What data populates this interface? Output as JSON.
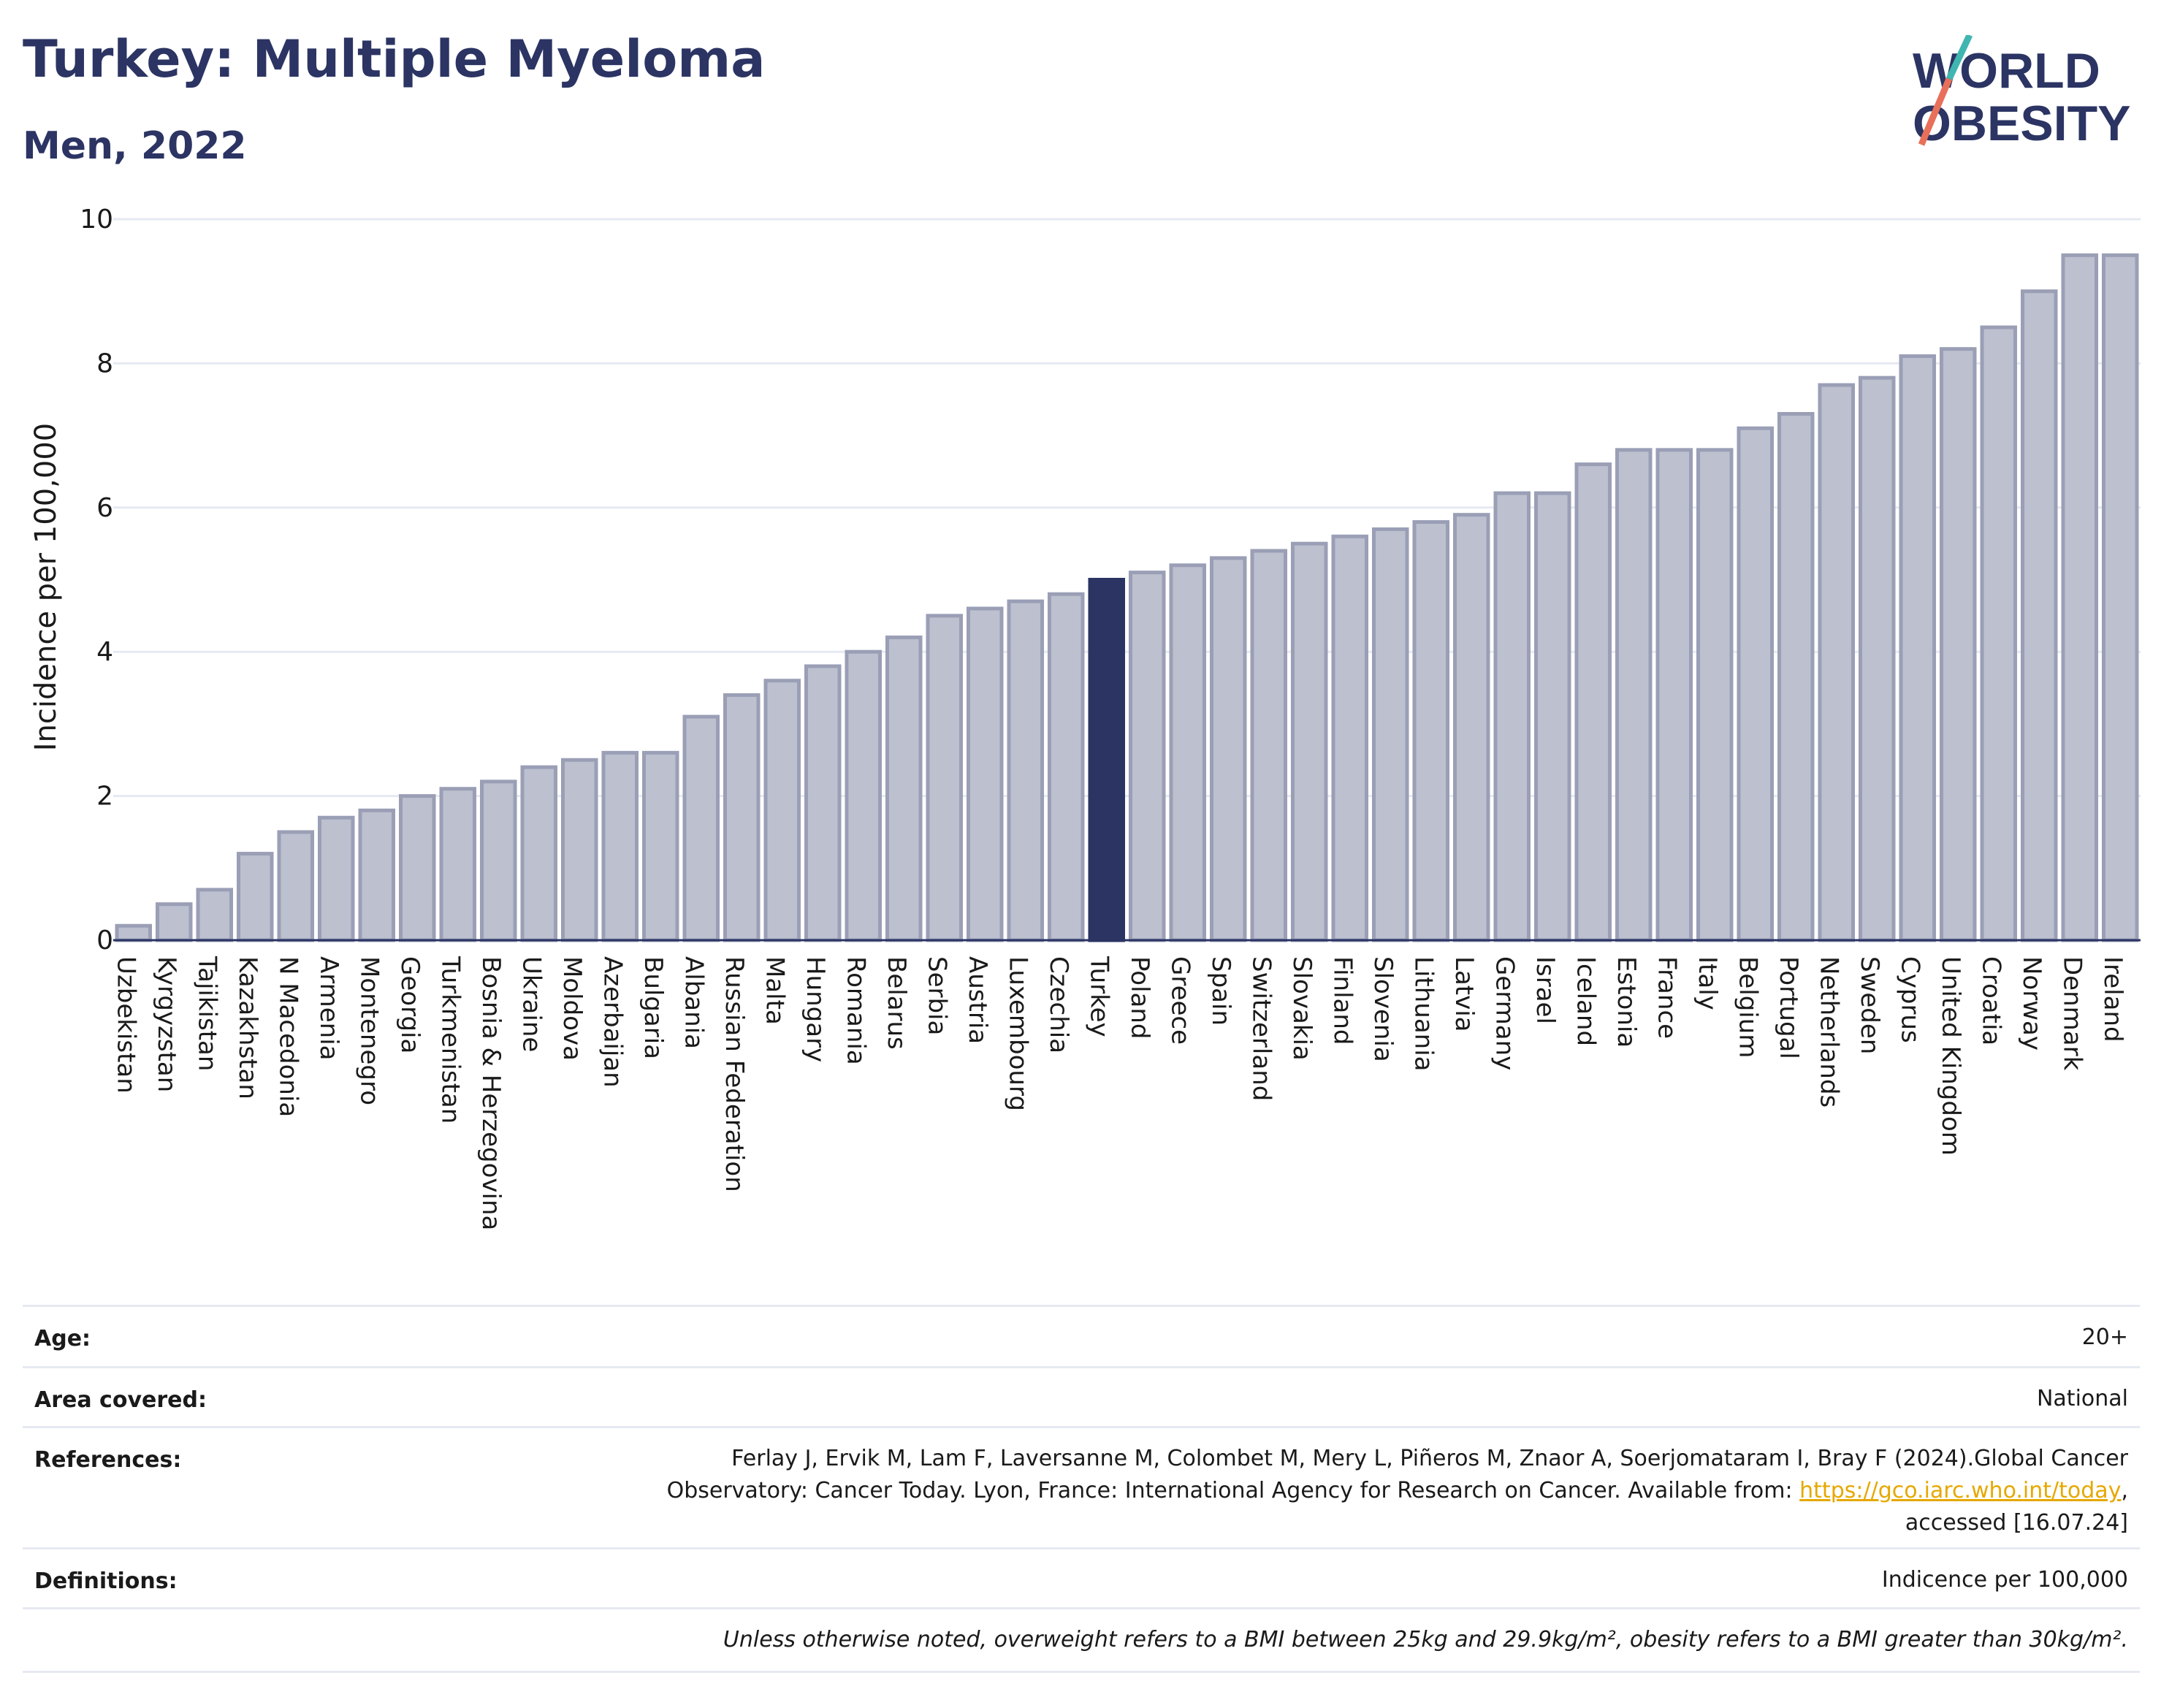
{
  "header": {
    "title": "Turkey: Multiple Myeloma",
    "subtitle": "Men, 2022",
    "logo_line1": "WORLD",
    "logo_line2": "OBESITY"
  },
  "colors": {
    "highlight": "#2b3463",
    "bar_fill": "#bcc0cf",
    "bar_stroke": "#9a9fb6",
    "grid": "#e6e9f1",
    "logo_slash_teal": "#3fb6b0",
    "logo_slash_coral": "#e8705a"
  },
  "chart_data": {
    "type": "bar",
    "ylabel": "Incidence per 100,000",
    "ylim": [
      0,
      10
    ],
    "yticks": [
      0,
      2,
      4,
      6,
      8,
      10
    ],
    "grid": true,
    "highlight_category": "Turkey",
    "categories": [
      "Uzbekistan",
      "Kyrgyzstan",
      "Tajikistan",
      "Kazakhstan",
      "N Macedonia",
      "Armenia",
      "Montenegro",
      "Georgia",
      "Turkmenistan",
      "Bosnia & Herzegovina",
      "Ukraine",
      "Moldova",
      "Azerbaijan",
      "Bulgaria",
      "Albania",
      "Russian Federation",
      "Malta",
      "Hungary",
      "Romania",
      "Belarus",
      "Serbia",
      "Austria",
      "Luxembourg",
      "Czechia",
      "Turkey",
      "Poland",
      "Greece",
      "Spain",
      "Switzerland",
      "Slovakia",
      "Finland",
      "Slovenia",
      "Lithuania",
      "Latvia",
      "Germany",
      "Israel",
      "Iceland",
      "Estonia",
      "France",
      "Italy",
      "Belgium",
      "Portugal",
      "Netherlands",
      "Sweden",
      "Cyprus",
      "United Kingdom",
      "Croatia",
      "Norway",
      "Denmark",
      "Ireland"
    ],
    "values": [
      0.2,
      0.5,
      0.7,
      1.2,
      1.5,
      1.7,
      1.8,
      2.0,
      2.1,
      2.2,
      2.4,
      2.5,
      2.6,
      2.6,
      3.1,
      3.4,
      3.6,
      3.8,
      4.0,
      4.2,
      4.5,
      4.6,
      4.7,
      4.8,
      5.0,
      5.1,
      5.2,
      5.3,
      5.4,
      5.5,
      5.6,
      5.7,
      5.8,
      5.9,
      6.2,
      6.2,
      6.6,
      6.8,
      6.8,
      6.8,
      7.1,
      7.3,
      7.7,
      7.8,
      8.1,
      8.2,
      8.5,
      9.0,
      9.5,
      9.5
    ]
  },
  "info": {
    "age_label": "Age:",
    "age_value": "20+",
    "area_label": "Area covered:",
    "area_value": "National",
    "references_label": "References:",
    "references_line1": "Ferlay J, Ervik M, Lam F, Laversanne M, Colombet M, Mery L, Piñeros M, Znaor A, Soerjomataram I, Bray F (2024).Global Cancer",
    "references_line2_pre": "Observatory: Cancer Today. Lyon, France: International Agency for Research on Cancer. Available from: ",
    "references_link": "https://gco.iarc.who.int/today",
    "references_line2_post": ",",
    "references_line3": "accessed [16.07.24]",
    "definitions_label": "Definitions:",
    "definitions_value": "Indicence per 100,000",
    "note": "Unless otherwise noted, overweight refers to a BMI between 25kg and 29.9kg/m², obesity refers to a BMI greater than 30kg/m²."
  }
}
